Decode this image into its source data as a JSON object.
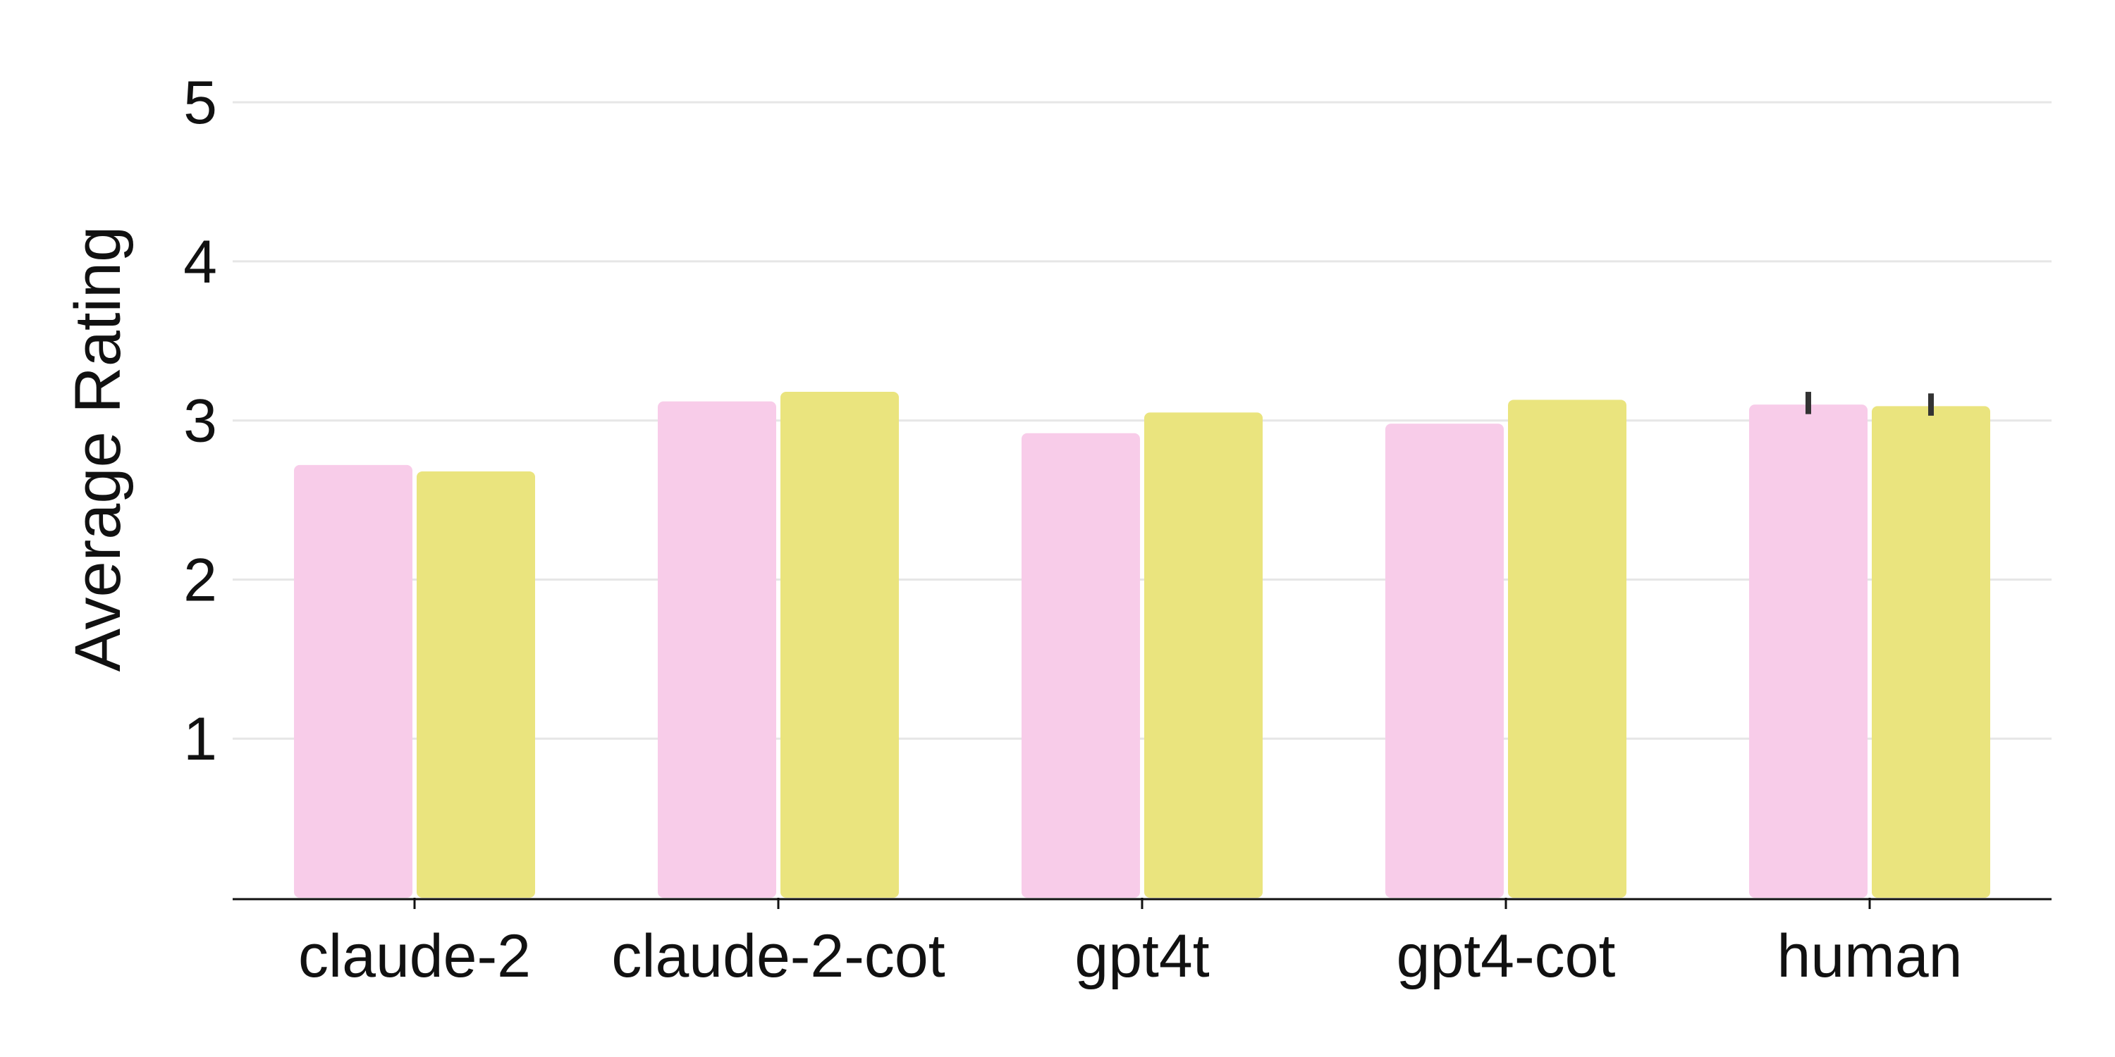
{
  "chart_data": {
    "type": "bar",
    "title": "",
    "xlabel": "",
    "ylabel": "Average Rating",
    "categories": [
      "claude-2",
      "claude-2-cot",
      "gpt4t",
      "gpt4-cot",
      "human"
    ],
    "series": [
      {
        "values": [
          2.72,
          3.12,
          2.92,
          2.98,
          3.1
        ]
      },
      {
        "values": [
          2.68,
          3.18,
          3.05,
          3.13,
          3.09
        ]
      }
    ],
    "error_bars": {
      "category": "human",
      "series_0": [
        3.04,
        3.18
      ],
      "series_1": [
        3.03,
        3.17
      ]
    },
    "ylim": [
      0,
      5.2
    ],
    "yticks": [
      1,
      2,
      3,
      4,
      5
    ],
    "grid": "horizontal",
    "legend": "none",
    "colors": {
      "series_0": "#f8cce9",
      "series_1": "#eae47e",
      "grid": "#e6e6e6",
      "axis": "#111111",
      "error_bar": "#333333"
    }
  }
}
